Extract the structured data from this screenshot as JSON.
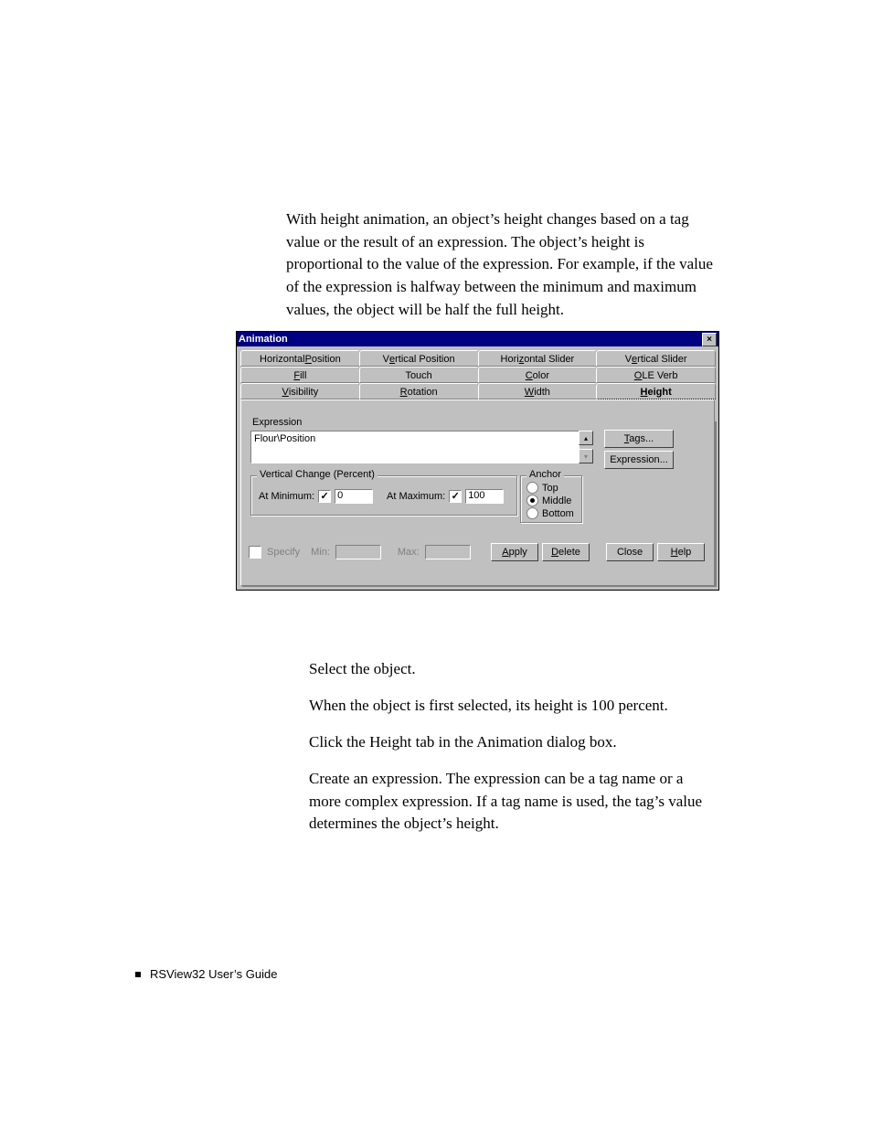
{
  "intro_text": "With height animation, an object’s height changes based on a tag value or the result of an expression. The object’s height is proportional to the value of the expression. For example, if the value of the expression is halfway between the minimum and maximum values, the object will be half the full height.",
  "dialog": {
    "title": "Animation",
    "tabs_row1": [
      "Horizontal Position",
      "Vertical Position",
      "Horizontal Slider",
      "Vertical Slider"
    ],
    "tabs_row2": [
      "Fill",
      "Touch",
      "Color",
      "OLE Verb"
    ],
    "tabs_row3": [
      "Visibility",
      "Rotation",
      "Width",
      "Height"
    ],
    "tabs_row1_ul": [
      "P",
      "e",
      "z",
      "e"
    ],
    "tabs_row2_ul": [
      "F",
      "",
      "C",
      "O"
    ],
    "tabs_row3_ul": [
      "V",
      "R",
      "W",
      "H"
    ],
    "active_tab": "Height",
    "expression_label": "Expression",
    "expression_value": "Flour\\Position",
    "tags_btn": "Tags...",
    "expression_btn": "Expression...",
    "tags_ul": "T",
    "vc_group": "Vertical Change (Percent)",
    "at_min_label": "At Minimum:",
    "at_min_checked": true,
    "at_min_value": "0",
    "at_max_label": "At Maximum:",
    "at_max_checked": true,
    "at_max_value": "100",
    "anchor_group": "Anchor",
    "anchor_options": [
      "Top",
      "Middle",
      "Bottom"
    ],
    "anchor_selected": "Middle",
    "specify_label": "Specify",
    "specify_ul": "S",
    "specify_checked": false,
    "min_label": "Min:",
    "max_label": "Max:",
    "apply_btn": "Apply",
    "apply_ul": "A",
    "delete_btn": "Delete",
    "delete_ul": "D",
    "close_btn": "Close",
    "help_btn": "Help",
    "help_ul": "H"
  },
  "steps": [
    "Select the object.",
    "When the object is first selected, its height is 100 percent.",
    "Click the Height tab in the Animation dialog box.",
    "Create an expression. The expression can be a tag name or a more complex expression. If a tag name is used, the tag’s value determines the object’s height."
  ],
  "footer_text": "RSView32  User’s Guide"
}
